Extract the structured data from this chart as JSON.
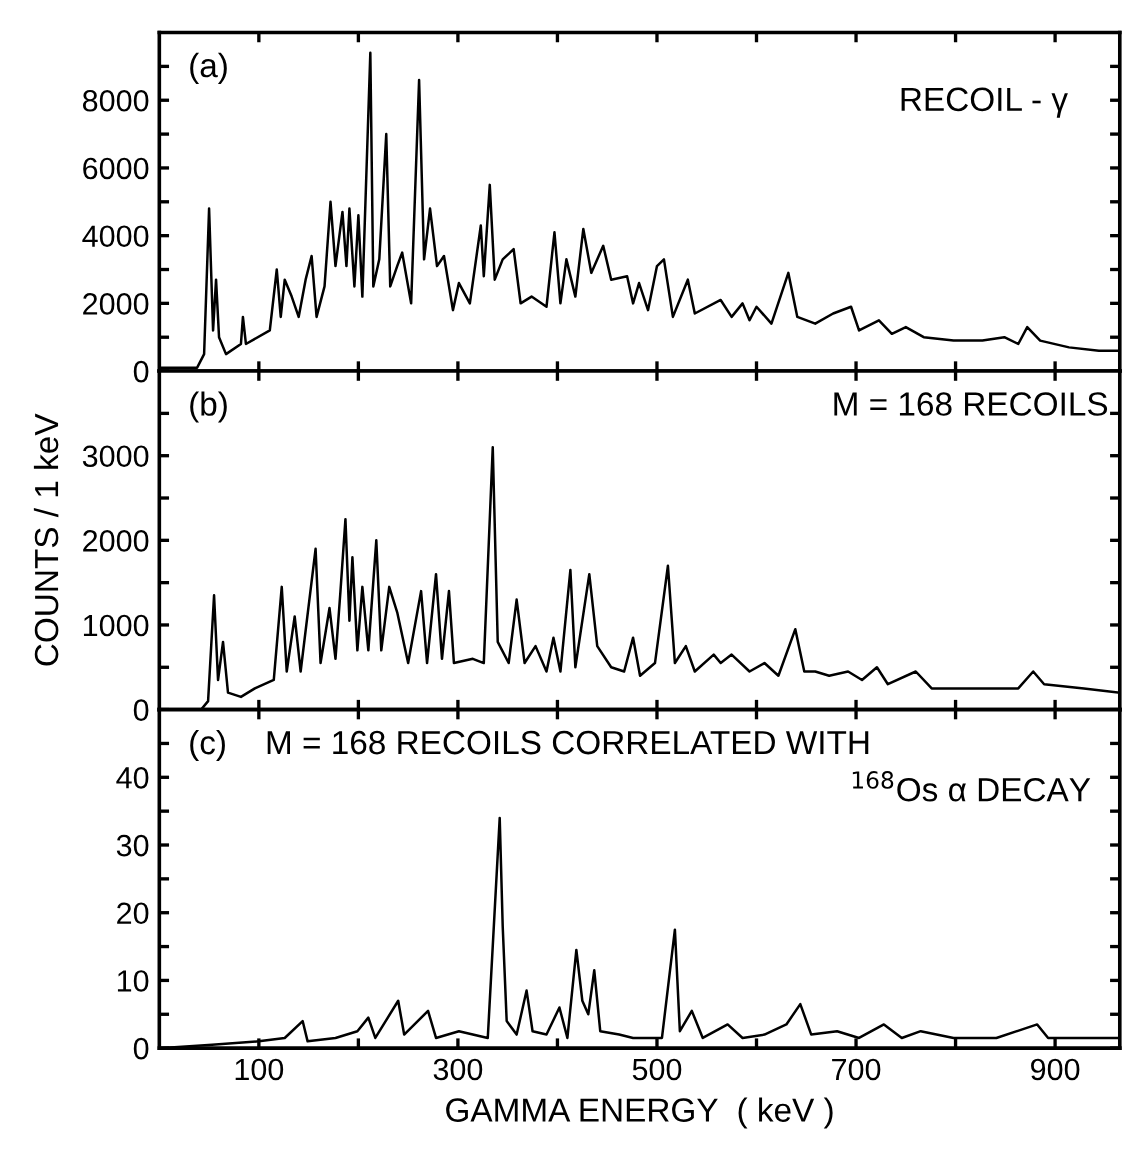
{
  "chart_data": [
    {
      "type": "line",
      "annotations": [
        "(a)",
        "RECOIL - γ"
      ],
      "tick_labels": "y",
      "xlim": [
        0,
        965
      ],
      "ylim": [
        0,
        10000
      ],
      "xticks": [
        100,
        {
          "value": 200,
          "label": null
        },
        300,
        {
          "value": 400,
          "label": null
        },
        500,
        {
          "value": 600,
          "label": null
        },
        700,
        {
          "value": 800,
          "label": null
        },
        900
      ],
      "yticks": [
        0,
        {
          "value": 1000,
          "label": null
        },
        2000,
        {
          "value": 3000,
          "label": null
        },
        4000,
        {
          "value": 5000,
          "label": null
        },
        6000,
        {
          "value": 7000,
          "label": null
        },
        8000,
        {
          "value": 9000,
          "label": null
        }
      ],
      "grid": false,
      "legend": false,
      "marker": "none",
      "line_style": "solid",
      "series": [
        {
          "color": "#000000",
          "x": [
            0,
            38,
            45,
            50,
            54,
            57,
            60,
            67,
            82,
            84,
            87,
            111,
            118,
            122,
            126,
            133,
            140,
            147,
            153,
            158,
            166,
            172,
            177,
            184,
            188,
            191,
            196,
            200,
            204,
            212,
            215,
            221,
            228,
            232,
            239,
            244,
            253,
            261,
            266,
            272,
            279,
            286,
            295,
            301,
            312,
            323,
            326,
            332,
            337,
            345,
            356,
            363,
            374,
            389,
            397,
            403,
            409,
            418,
            426,
            434,
            446,
            454,
            470,
            476,
            482,
            491,
            500,
            507,
            516,
            531,
            538,
            564,
            575,
            586,
            593,
            600,
            615,
            632,
            641,
            659,
            677,
            695,
            703,
            723,
            736,
            750,
            768,
            798,
            827,
            849,
            863,
            872,
            885,
            914,
            944,
            965
          ],
          "values": [
            100,
            100,
            500,
            4800,
            1200,
            2700,
            1000,
            500,
            800,
            1600,
            800,
            1200,
            3000,
            1600,
            2700,
            2200,
            1600,
            2700,
            3400,
            1600,
            2500,
            5000,
            3100,
            4700,
            3100,
            4800,
            2500,
            4600,
            2200,
            9400,
            2500,
            3300,
            7000,
            2500,
            3100,
            3500,
            2000,
            8600,
            3300,
            4800,
            3100,
            3400,
            1800,
            2600,
            2000,
            4300,
            2800,
            5500,
            2700,
            3300,
            3600,
            2000,
            2200,
            1900,
            4100,
            2000,
            3300,
            2200,
            4200,
            2900,
            3700,
            2700,
            2800,
            2000,
            2600,
            1800,
            3100,
            3300,
            1600,
            2700,
            1700,
            2100,
            1600,
            2000,
            1500,
            1900,
            1400,
            2900,
            1600,
            1400,
            1700,
            1900,
            1200,
            1500,
            1100,
            1300,
            1000,
            900,
            900,
            1000,
            800,
            1300,
            900,
            700,
            600,
            600
          ]
        }
      ]
    },
    {
      "type": "line",
      "annotations": [
        "(b)",
        "M = 168 RECOILS"
      ],
      "ylabel": "COUNTS / 1 keV",
      "tick_labels": "y",
      "xlim": [
        0,
        965
      ],
      "ylim": [
        0,
        4000
      ],
      "xticks": [
        100,
        {
          "value": 200,
          "label": null
        },
        300,
        {
          "value": 400,
          "label": null
        },
        500,
        {
          "value": 600,
          "label": null
        },
        700,
        {
          "value": 800,
          "label": null
        },
        900
      ],
      "yticks": [
        0,
        {
          "value": 500,
          "label": null
        },
        1000,
        {
          "value": 1500,
          "label": null
        },
        2000,
        {
          "value": 2500,
          "label": null
        },
        3000,
        {
          "value": 3500,
          "label": null
        }
      ],
      "grid": false,
      "legend": false,
      "marker": "none",
      "line_style": "solid",
      "series": [
        {
          "color": "#000000",
          "x": [
            0,
            42,
            49,
            55,
            59,
            64,
            69,
            82,
            96,
            115,
            123,
            128,
            136,
            142,
            157,
            162,
            171,
            177,
            182,
            187,
            191,
            194,
            199,
            204,
            210,
            218,
            223,
            231,
            239,
            250,
            263,
            269,
            278,
            284,
            291,
            296,
            315,
            326,
            335,
            340,
            351,
            359,
            367,
            378,
            389,
            396,
            403,
            413,
            418,
            432,
            440,
            454,
            467,
            476,
            483,
            498,
            511,
            518,
            529,
            538,
            557,
            564,
            575,
            593,
            608,
            622,
            639,
            648,
            659,
            673,
            692,
            706,
            721,
            732,
            760,
            776,
            798,
            827,
            863,
            878,
            889,
            929,
            965
          ],
          "values": [
            0,
            0,
            100,
            1350,
            350,
            800,
            200,
            150,
            250,
            350,
            1450,
            450,
            1100,
            450,
            1900,
            550,
            1200,
            600,
            1400,
            2250,
            1050,
            1800,
            700,
            1450,
            700,
            2000,
            700,
            1450,
            1150,
            550,
            1400,
            550,
            1600,
            600,
            1400,
            550,
            600,
            550,
            3100,
            800,
            550,
            1300,
            550,
            750,
            450,
            850,
            450,
            1650,
            500,
            1600,
            750,
            500,
            450,
            850,
            400,
            550,
            1700,
            550,
            750,
            450,
            650,
            550,
            650,
            450,
            550,
            400,
            950,
            450,
            450,
            400,
            450,
            350,
            500,
            300,
            450,
            250,
            250,
            250,
            250,
            450,
            300,
            250,
            200
          ]
        }
      ]
    },
    {
      "type": "line",
      "annotations": [
        "(c)",
        "M = 168 RECOILS CORRELATED WITH",
        "$^{168}$Os α DECAY"
      ],
      "xlabel": "GAMMA ENERGY  ( keV )",
      "xlim": [
        0,
        965
      ],
      "ylim": [
        0,
        50
      ],
      "xticks": [
        100,
        {
          "value": 200,
          "label": null
        },
        300,
        {
          "value": 400,
          "label": null
        },
        500,
        {
          "value": 600,
          "label": null
        },
        700,
        {
          "value": 800,
          "label": null
        },
        900
      ],
      "yticks": [
        0,
        {
          "value": 5,
          "label": null
        },
        10,
        {
          "value": 15,
          "label": null
        },
        20,
        {
          "value": 25,
          "label": null
        },
        30,
        {
          "value": 35,
          "label": null
        },
        40,
        {
          "value": 45,
          "label": null
        }
      ],
      "grid": false,
      "legend": false,
      "marker": "none",
      "line_style": "solid",
      "series": [
        {
          "color": "#000000",
          "x": [
            0,
            53,
            100,
            126,
            144,
            149,
            177,
            199,
            210,
            217,
            240,
            246,
            270,
            278,
            301,
            330,
            342,
            345,
            349,
            359,
            369,
            375,
            389,
            402,
            410,
            419,
            425,
            431,
            437,
            443,
            462,
            476,
            505,
            518,
            523,
            535,
            546,
            571,
            586,
            608,
            630,
            644,
            655,
            681,
            703,
            728,
            746,
            765,
            798,
            841,
            882,
            893,
            944,
            965
          ],
          "values": [
            0,
            0.5,
            1,
            1.5,
            4,
            1,
            1.5,
            2.5,
            4.5,
            1.5,
            7,
            2,
            5.5,
            1.5,
            2.5,
            1.5,
            34,
            18,
            4,
            2,
            8.5,
            2.5,
            2,
            6,
            1.5,
            14.5,
            7,
            5,
            11.5,
            2.5,
            2,
            1.5,
            1.5,
            17.5,
            2.5,
            5.5,
            1.5,
            3.5,
            1.5,
            2,
            3.5,
            6.5,
            2,
            2.5,
            1.5,
            3.5,
            1.5,
            2.5,
            1.5,
            1.5,
            3.5,
            1.5,
            1.5,
            1.5
          ]
        }
      ]
    }
  ]
}
